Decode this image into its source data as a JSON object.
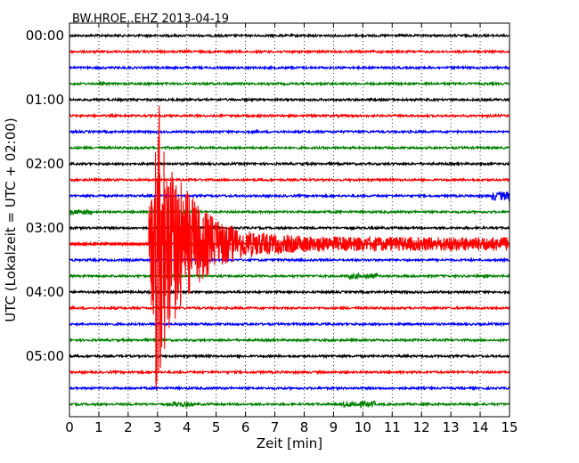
{
  "chart_data": {
    "type": "line",
    "title": "BW.HROE..EHZ 2013-04-19",
    "xlabel": "Zeit  [min]",
    "ylabel": "UTC (Lokalzeit = UTC + 02:00)",
    "xlim": [
      0,
      15
    ],
    "x_ticks": [
      "0",
      "1",
      "2",
      "3",
      "4",
      "5",
      "6",
      "7",
      "8",
      "9",
      "10",
      "11",
      "12",
      "13",
      "14",
      "15"
    ],
    "y_ticks": [
      "00:00",
      "01:00",
      "02:00",
      "03:00",
      "04:00",
      "05:00"
    ],
    "grid": "vertical dotted",
    "trace_colors": [
      "#000000",
      "#ff0000",
      "#0000ff",
      "#008000"
    ],
    "traces_per_hour": 4,
    "trace_interval_min": 15,
    "event": {
      "onset_min": 2.7,
      "trace_start": "03:15",
      "color": "#ff0000"
    }
  }
}
